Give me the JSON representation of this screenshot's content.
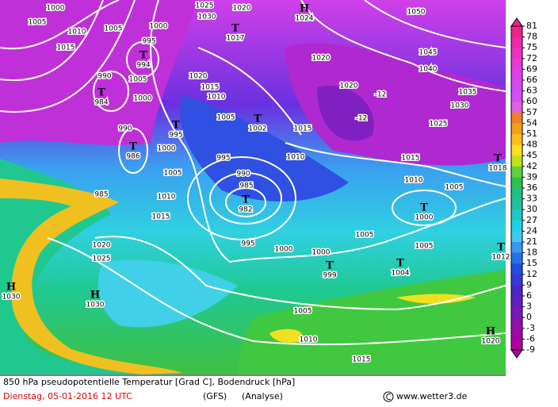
{
  "map": {
    "isobar_labels": [
      1000,
      1005,
      1010,
      1015,
      1005,
      1000,
      995,
      1025,
      1030,
      1020,
      1050,
      1045,
      1040,
      1035,
      1030,
      1025,
      1020,
      1020,
      1020,
      1015,
      1010,
      1005,
      1015,
      990,
      1005,
      1000,
      990,
      1000,
      995,
      1005,
      995,
      990,
      985,
      1010,
      1015,
      1010,
      1015,
      1010,
      1005,
      1005,
      1000,
      995,
      1000,
      1005,
      1020,
      1025,
      985,
      1005,
      1010,
      1015,
      -12,
      -12
    ],
    "centers": [
      {
        "symbol": "T",
        "label": 994
      },
      {
        "symbol": "T",
        "label": 1017
      },
      {
        "symbol": "H",
        "label": 1024
      },
      {
        "symbol": "T",
        "label": 1002
      },
      {
        "symbol": "T",
        "label": 984
      },
      {
        "symbol": "T",
        "label": 986
      },
      {
        "symbol": "T",
        "label": 995
      },
      {
        "symbol": "T",
        "label": 982
      },
      {
        "symbol": "T",
        "label": 1000
      },
      {
        "symbol": "T",
        "label": 999
      },
      {
        "symbol": "T",
        "label": 1004
      },
      {
        "symbol": "H",
        "label": 1030
      },
      {
        "symbol": "H",
        "label": 1030
      },
      {
        "symbol": "H",
        "label": 1020
      },
      {
        "symbol": "T",
        "label": 1018
      },
      {
        "symbol": "T",
        "label": 1012
      }
    ],
    "legend": {
      "ticks": [
        81,
        78,
        75,
        72,
        69,
        66,
        63,
        60,
        57,
        54,
        51,
        48,
        45,
        42,
        39,
        36,
        33,
        30,
        27,
        24,
        21,
        18,
        15,
        12,
        9,
        6,
        3,
        0,
        -3,
        -6,
        -9
      ],
      "colors": [
        "#f0208c",
        "#f028a8",
        "#ee30c0",
        "#ea38d8",
        "#e040e8",
        "#d848f0",
        "#d050f4",
        "#e060e0",
        "#f08028",
        "#f0a018",
        "#f8c018",
        "#f8e020",
        "#c0e020",
        "#60d040",
        "#30c050",
        "#20c080",
        "#20c0a0",
        "#20c8c8",
        "#20d0e8",
        "#40c8f0",
        "#3898f0",
        "#2870e8",
        "#2050e0",
        "#3838d8",
        "#4828c8",
        "#6020c0",
        "#7818b8",
        "#9010b0",
        "#a008a8",
        "#b000a0"
      ]
    },
    "footer": {
      "line1": "850 hPa pseudopotentielle Temperatur [Grad C], Bodendruck [hPa]",
      "date": "Dienstag, 05-01-2016  12 UTC",
      "model": "(GFS)",
      "run": "(Analyse)",
      "credit": "www.wetter3.de"
    }
  }
}
